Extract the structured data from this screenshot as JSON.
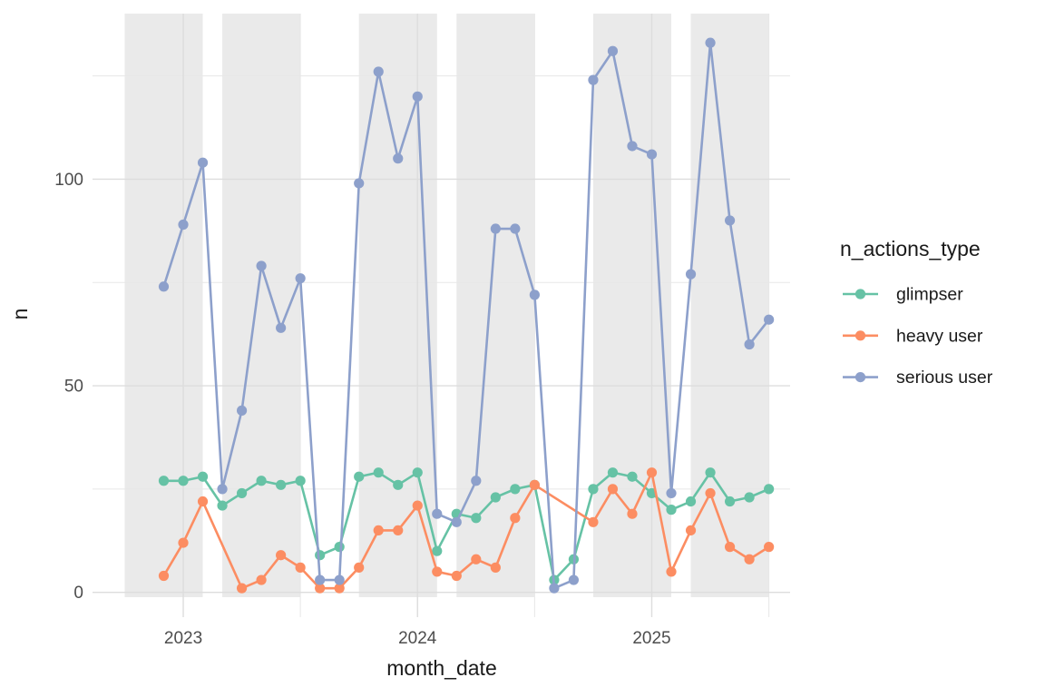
{
  "chart_data": {
    "type": "line",
    "xlabel": "month_date",
    "ylabel": "n",
    "legend_title": "n_actions_type",
    "legend_position": "right",
    "grid": true,
    "ylim": [
      -4,
      140
    ],
    "x_months": [
      "2022-12",
      "2023-01",
      "2023-02",
      "2023-03",
      "2023-04",
      "2023-05",
      "2023-06",
      "2023-07",
      "2023-08",
      "2023-09",
      "2023-10",
      "2023-11",
      "2023-12",
      "2024-01",
      "2024-02",
      "2024-03",
      "2024-04",
      "2024-05",
      "2024-06",
      "2024-07",
      "2024-08",
      "2024-09",
      "2024-10",
      "2024-11",
      "2024-12",
      "2025-01",
      "2025-02",
      "2025-03",
      "2025-04",
      "2025-05",
      "2025-06",
      "2025-07"
    ],
    "series": [
      {
        "name": "glimpser",
        "color": "#66C2A5",
        "values": [
          27,
          27,
          28,
          21,
          24,
          27,
          26,
          27,
          9,
          11,
          28,
          29,
          26,
          29,
          10,
          19,
          18,
          23,
          25,
          26,
          3,
          8,
          25,
          29,
          28,
          24,
          20,
          22,
          29,
          22,
          23,
          25
        ]
      },
      {
        "name": "heavy user",
        "color": "#FC8D62",
        "values": [
          4,
          12,
          22,
          null,
          1,
          3,
          9,
          6,
          1,
          1,
          6,
          15,
          15,
          21,
          5,
          4,
          8,
          6,
          18,
          26,
          null,
          null,
          17,
          25,
          19,
          29,
          5,
          15,
          24,
          11,
          8,
          11
        ]
      },
      {
        "name": "serious user",
        "color": "#8DA0CB",
        "values": [
          74,
          89,
          104,
          25,
          44,
          79,
          64,
          76,
          3,
          3,
          99,
          126,
          105,
          120,
          19,
          17,
          27,
          88,
          88,
          72,
          1,
          3,
          124,
          131,
          108,
          106,
          24,
          77,
          133,
          90,
          60,
          66
        ]
      }
    ],
    "y_ticks": [
      {
        "value": 0,
        "label": "0"
      },
      {
        "value": 50,
        "label": "50"
      },
      {
        "value": 100,
        "label": "100"
      }
    ],
    "y_minor_gridlines": [
      25,
      75,
      125
    ],
    "x_major_ticks": [
      {
        "month": "2023-01",
        "label": "2023"
      },
      {
        "month": "2024-01",
        "label": "2024"
      },
      {
        "month": "2025-01",
        "label": "2025"
      }
    ],
    "x_minor_gridlines": [
      "2023-07",
      "2024-07",
      "2025-07"
    ],
    "shaded_bands": [
      {
        "from": "2022-10",
        "to": "2023-02"
      },
      {
        "from": "2023-03",
        "to": "2023-07"
      },
      {
        "from": "2023-10",
        "to": "2024-02"
      },
      {
        "from": "2024-03",
        "to": "2024-07"
      },
      {
        "from": "2024-10",
        "to": "2025-02"
      },
      {
        "from": "2025-03",
        "to": "2025-07"
      }
    ],
    "colors": {
      "background": "#FFFFFF",
      "band": "#EAEAEA",
      "grid_major": "#DDDDDD",
      "grid_minor": "#E7E7E7",
      "tick_text": "#4D4D4D",
      "title_text": "#1A1A1A"
    }
  }
}
